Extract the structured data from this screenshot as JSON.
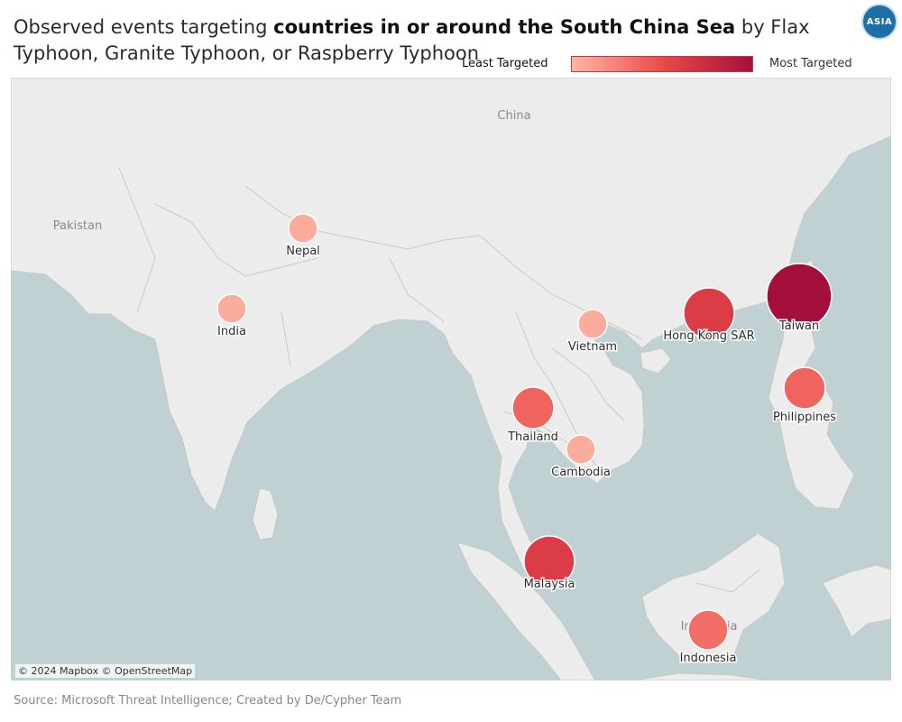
{
  "title": {
    "prefix": "Observed events targeting ",
    "emphasis": "countries in or around the South China Sea",
    "suffix": " by Flax Typhoon, Granite Typhoon, or Raspberry Typhoon"
  },
  "badge": "ASIA",
  "legend": {
    "min_label": "Least Targeted",
    "max_label": "Most Targeted",
    "min_color": "#fdb7a6",
    "mid_color": "#ec4a48",
    "max_color": "#a50f3c"
  },
  "map": {
    "attribution": "© 2024 Mapbox © OpenStreetMap",
    "land_color": "#ececec",
    "sea_color": "#bfd1d2",
    "region_labels": [
      {
        "id": "china",
        "text": "China"
      },
      {
        "id": "pakistan",
        "text": "Pakistan"
      },
      {
        "id": "indonesia-base",
        "text": "Indonesia"
      }
    ],
    "countries": [
      {
        "name": "Nepal",
        "level": 0.05
      },
      {
        "name": "India",
        "level": 0.05
      },
      {
        "name": "Vietnam",
        "level": 0.05
      },
      {
        "name": "Hong Kong SAR",
        "level": 0.62
      },
      {
        "name": "Taiwan",
        "level": 1.0
      },
      {
        "name": "Philippines",
        "level": 0.38
      },
      {
        "name": "Thailand",
        "level": 0.38
      },
      {
        "name": "Cambodia",
        "level": 0.05
      },
      {
        "name": "Malaysia",
        "level": 0.62
      },
      {
        "name": "Indonesia",
        "level": 0.33
      }
    ]
  },
  "footer": "Source: Microsoft Threat Intelligence; Created by De/Cypher Team"
}
